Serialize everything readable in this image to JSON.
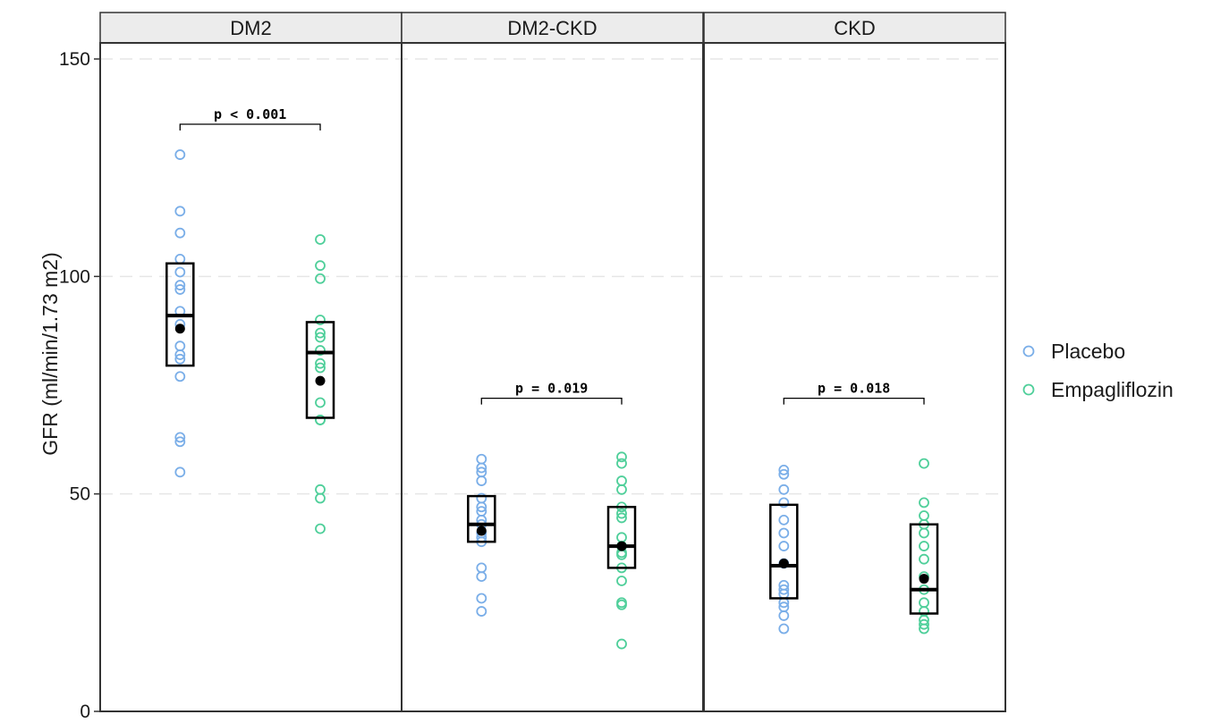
{
  "chart_data": {
    "type": "scatter",
    "ylabel": "GFR (ml/min/1.73 m2)",
    "xlabel": "",
    "ylim": [
      0,
      155
    ],
    "yticks": [
      "0",
      "50",
      "100",
      "150"
    ],
    "grid": "horizontal dashed",
    "legend_position": "right",
    "legend": [
      {
        "name": "Placebo",
        "color": "#7aaee8"
      },
      {
        "name": "Empagliflozin",
        "color": "#4fcf9a"
      }
    ],
    "panels": [
      {
        "label": "DM2",
        "p_text": "p < 0.001",
        "bracket_y": 135,
        "groups": [
          {
            "series": "Placebo",
            "color": "#7aaee8",
            "points": [
              128,
              115,
              110,
              104,
              101,
              98,
              97,
              92,
              89,
              84,
              82,
              81,
              77,
              63,
              62,
              55
            ],
            "mean": 88,
            "median": 91,
            "q1": 79.5,
            "q3": 103
          },
          {
            "series": "Empagliflozin",
            "color": "#4fcf9a",
            "points": [
              108.5,
              102.5,
              99.5,
              90,
              87,
              86,
              83,
              80,
              79,
              71,
              67,
              67,
              51,
              49,
              42
            ],
            "mean": 76,
            "median": 82.5,
            "q1": 67.5,
            "q3": 89.5
          }
        ]
      },
      {
        "label": "DM2-CKD",
        "p_text": "p = 0.019",
        "bracket_y": 72,
        "groups": [
          {
            "series": "Placebo",
            "color": "#7aaee8",
            "points": [
              58,
              56,
              55,
              53,
              49,
              47,
              46,
              44,
              43,
              41,
              40,
              39,
              33,
              31,
              26,
              23
            ],
            "mean": 41.5,
            "median": 43,
            "q1": 39,
            "q3": 49.5
          },
          {
            "series": "Empagliflozin",
            "color": "#4fcf9a",
            "points": [
              58.5,
              57,
              53,
              51,
              47,
              45.5,
              44.5,
              40,
              38,
              36.5,
              36,
              33,
              30,
              25,
              24.5,
              15.5
            ],
            "mean": 38,
            "median": 38,
            "q1": 33,
            "q3": 47
          }
        ]
      },
      {
        "label": "CKD",
        "p_text": "p = 0.018",
        "bracket_y": 72,
        "groups": [
          {
            "series": "Placebo",
            "color": "#7aaee8",
            "points": [
              55.5,
              54.5,
              51,
              48,
              44,
              41,
              38,
              34,
              29,
              28,
              27,
              25,
              24,
              22,
              19
            ],
            "mean": 34,
            "median": 33.5,
            "q1": 26,
            "q3": 47.5
          },
          {
            "series": "Empagliflozin",
            "color": "#4fcf9a",
            "points": [
              57,
              48,
              45,
              43,
              41,
              38,
              35,
              31,
              28,
              25,
              23,
              21,
              20,
              19
            ],
            "mean": 30.5,
            "median": 28,
            "q1": 22.5,
            "q3": 43
          }
        ]
      }
    ]
  }
}
